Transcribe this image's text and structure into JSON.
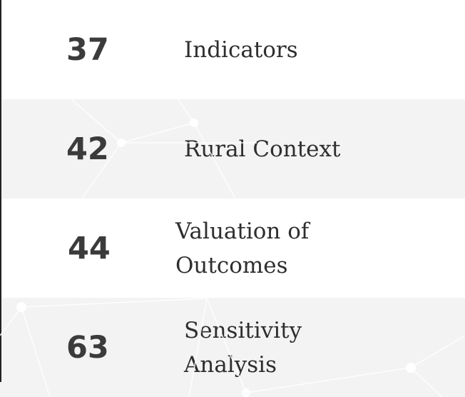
{
  "toc": {
    "entries": [
      {
        "page": 37,
        "title": "Indicators"
      },
      {
        "page": 42,
        "title": "Rural Context"
      },
      {
        "page": 44,
        "title": "Valuation of Outcomes"
      },
      {
        "page": 63,
        "title": "Sensitivity Analysis"
      }
    ]
  }
}
